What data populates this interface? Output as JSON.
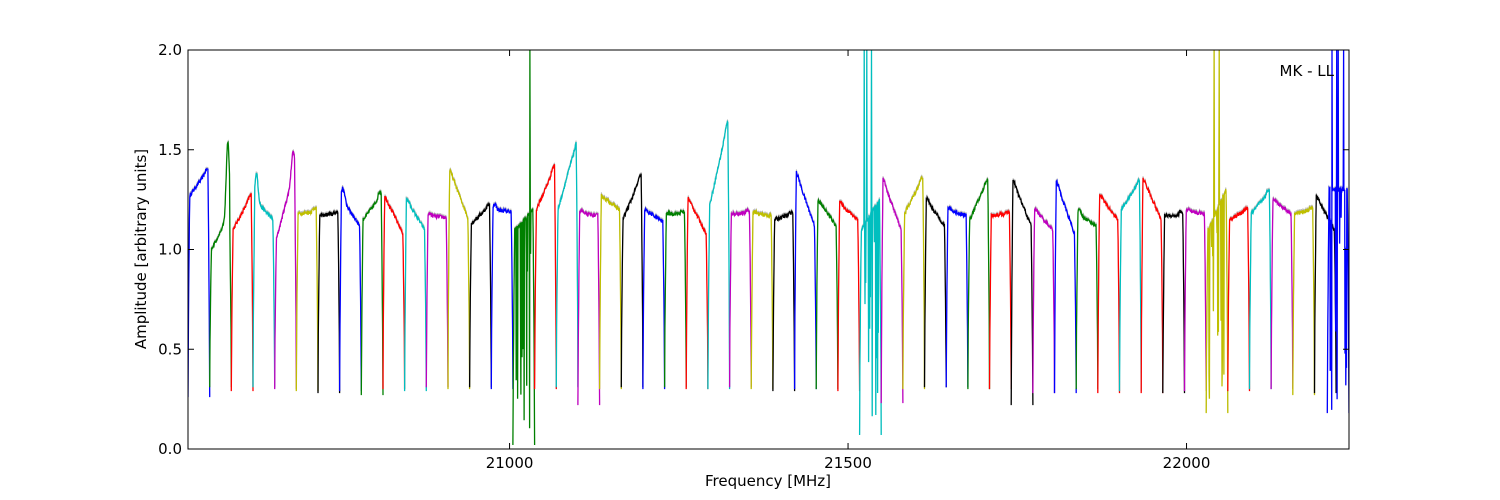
{
  "chart_data": {
    "type": "line",
    "title": "",
    "annotation": "MK - LL",
    "xlabel": "Frequency [MHz]",
    "ylabel": "Amplitude [arbitrary units]",
    "xlim": [
      20525,
      22240
    ],
    "ylim": [
      0.0,
      2.0
    ],
    "xticks": [
      21000,
      21500,
      22000
    ],
    "xtick_labels": [
      "21000",
      "21500",
      "22000"
    ],
    "yticks": [
      0.0,
      0.5,
      1.0,
      1.5,
      2.0
    ],
    "ytick_labels": [
      "0.0",
      "0.5",
      "1.0",
      "1.5",
      "2.0"
    ],
    "grid": false,
    "legend": "none",
    "color_cycle": [
      "#0000ff",
      "#008000",
      "#ff0000",
      "#00bfbf",
      "#bf00bf",
      "#bfbf00",
      "#000000"
    ],
    "band_width_mhz": 32,
    "series": [
      {
        "color": "#0000ff",
        "start": 20525,
        "min": 0.26,
        "left_edge": 1.27,
        "right_edge": 1.4,
        "peak": 1.41,
        "noisy": false
      },
      {
        "color": "#008000",
        "start": 20557,
        "min": 0.31,
        "left_edge": 1.0,
        "right_edge": 1.18,
        "peak": 1.56,
        "noisy": false
      },
      {
        "color": "#ff0000",
        "start": 20589,
        "min": 0.29,
        "left_edge": 1.1,
        "right_edge": 1.27,
        "peak": 1.28,
        "noisy": false
      },
      {
        "color": "#00bfbf",
        "start": 20621,
        "min": 0.31,
        "left_edge": 1.25,
        "right_edge": 1.15,
        "peak": 1.39,
        "noisy": false
      },
      {
        "color": "#bf00bf",
        "start": 20653,
        "min": 0.3,
        "left_edge": 1.05,
        "right_edge": 1.4,
        "peak": 1.52,
        "noisy": false
      },
      {
        "color": "#bfbf00",
        "start": 20685,
        "min": 0.29,
        "left_edge": 1.18,
        "right_edge": 1.19,
        "peak": 1.21,
        "noisy": false
      },
      {
        "color": "#000000",
        "start": 20717,
        "min": 0.28,
        "left_edge": 1.17,
        "right_edge": 1.18,
        "peak": 1.19,
        "noisy": false
      },
      {
        "color": "#0000ff",
        "start": 20749,
        "min": 0.29,
        "left_edge": 1.26,
        "right_edge": 1.12,
        "peak": 1.32,
        "noisy": false
      },
      {
        "color": "#008000",
        "start": 20781,
        "min": 0.27,
        "left_edge": 1.15,
        "right_edge": 1.27,
        "peak": 1.3,
        "noisy": false
      },
      {
        "color": "#ff0000",
        "start": 20813,
        "min": 0.3,
        "left_edge": 1.27,
        "right_edge": 1.08,
        "peak": 1.27,
        "noisy": false
      },
      {
        "color": "#00bfbf",
        "start": 20845,
        "min": 0.29,
        "left_edge": 1.25,
        "right_edge": 1.1,
        "peak": 1.26,
        "noisy": false
      },
      {
        "color": "#bf00bf",
        "start": 20877,
        "min": 0.31,
        "left_edge": 1.17,
        "right_edge": 1.16,
        "peak": 1.18,
        "noisy": false
      },
      {
        "color": "#bfbf00",
        "start": 20909,
        "min": 0.3,
        "left_edge": 1.4,
        "right_edge": 1.16,
        "peak": 1.4,
        "noisy": false
      },
      {
        "color": "#000000",
        "start": 20941,
        "min": 0.31,
        "left_edge": 1.13,
        "right_edge": 1.22,
        "peak": 1.23,
        "noisy": false
      },
      {
        "color": "#0000ff",
        "start": 20973,
        "min": 0.3,
        "left_edge": 1.2,
        "right_edge": 1.19,
        "peak": 1.23,
        "noisy": false
      },
      {
        "color": "#008000",
        "start": 21005,
        "min": 0.02,
        "left_edge": 1.1,
        "right_edge": 1.2,
        "peak": 2.0,
        "noisy": true
      },
      {
        "color": "#ff0000",
        "start": 21037,
        "min": 0.3,
        "left_edge": 1.2,
        "right_edge": 1.41,
        "peak": 1.43,
        "noisy": false
      },
      {
        "color": "#00bfbf",
        "start": 21069,
        "min": 0.31,
        "left_edge": 1.2,
        "right_edge": 1.53,
        "peak": 1.53,
        "noisy": false
      },
      {
        "color": "#bf00bf",
        "start": 21101,
        "min": 0.22,
        "left_edge": 1.18,
        "right_edge": 1.17,
        "peak": 1.2,
        "noisy": false
      },
      {
        "color": "#bfbf00",
        "start": 21133,
        "min": 0.3,
        "left_edge": 1.27,
        "right_edge": 1.2,
        "peak": 1.27,
        "noisy": false
      },
      {
        "color": "#000000",
        "start": 21165,
        "min": 0.31,
        "left_edge": 1.15,
        "right_edge": 1.37,
        "peak": 1.38,
        "noisy": false
      },
      {
        "color": "#0000ff",
        "start": 21197,
        "min": 0.3,
        "left_edge": 1.2,
        "right_edge": 1.14,
        "peak": 1.2,
        "noisy": false
      },
      {
        "color": "#008000",
        "start": 21229,
        "min": 0.31,
        "left_edge": 1.18,
        "right_edge": 1.18,
        "peak": 1.19,
        "noisy": false
      },
      {
        "color": "#ff0000",
        "start": 21261,
        "min": 0.3,
        "left_edge": 1.26,
        "right_edge": 1.08,
        "peak": 1.26,
        "noisy": false
      },
      {
        "color": "#00bfbf",
        "start": 21293,
        "min": 0.3,
        "left_edge": 1.22,
        "right_edge": 1.63,
        "peak": 1.65,
        "noisy": false
      },
      {
        "color": "#bf00bf",
        "start": 21325,
        "min": 0.31,
        "left_edge": 1.18,
        "right_edge": 1.18,
        "peak": 1.2,
        "noisy": false
      },
      {
        "color": "#bfbf00",
        "start": 21357,
        "min": 0.3,
        "left_edge": 1.18,
        "right_edge": 1.17,
        "peak": 1.19,
        "noisy": false
      },
      {
        "color": "#000000",
        "start": 21389,
        "min": 0.29,
        "left_edge": 1.15,
        "right_edge": 1.18,
        "peak": 1.19,
        "noisy": false
      },
      {
        "color": "#0000ff",
        "start": 21421,
        "min": 0.3,
        "left_edge": 1.38,
        "right_edge": 1.12,
        "peak": 1.39,
        "noisy": false
      },
      {
        "color": "#008000",
        "start": 21453,
        "min": 0.3,
        "left_edge": 1.25,
        "right_edge": 1.12,
        "peak": 1.25,
        "noisy": false
      },
      {
        "color": "#ff0000",
        "start": 21485,
        "min": 0.29,
        "left_edge": 1.23,
        "right_edge": 1.15,
        "peak": 1.24,
        "noisy": false
      },
      {
        "color": "#00bfbf",
        "start": 21517,
        "min": 0.07,
        "left_edge": 1.1,
        "right_edge": 1.25,
        "peak": 2.0,
        "noisy": true
      },
      {
        "color": "#bf00bf",
        "start": 21549,
        "min": 0.23,
        "left_edge": 1.35,
        "right_edge": 1.1,
        "peak": 1.36,
        "noisy": false
      },
      {
        "color": "#bfbf00",
        "start": 21581,
        "min": 0.3,
        "left_edge": 1.18,
        "right_edge": 1.36,
        "peak": 1.37,
        "noisy": false
      },
      {
        "color": "#000000",
        "start": 21613,
        "min": 0.31,
        "left_edge": 1.25,
        "right_edge": 1.12,
        "peak": 1.26,
        "noisy": false
      },
      {
        "color": "#0000ff",
        "start": 21645,
        "min": 0.31,
        "left_edge": 1.2,
        "right_edge": 1.17,
        "peak": 1.21,
        "noisy": false
      },
      {
        "color": "#008000",
        "start": 21677,
        "min": 0.3,
        "left_edge": 1.15,
        "right_edge": 1.35,
        "peak": 1.36,
        "noisy": false
      },
      {
        "color": "#ff0000",
        "start": 21709,
        "min": 0.3,
        "left_edge": 1.17,
        "right_edge": 1.18,
        "peak": 1.19,
        "noisy": false
      },
      {
        "color": "#000000",
        "start": 21741,
        "min": 0.22,
        "left_edge": 1.34,
        "right_edge": 1.12,
        "peak": 1.35,
        "noisy": false
      },
      {
        "color": "#bf00bf",
        "start": 21773,
        "min": 0.28,
        "left_edge": 1.2,
        "right_edge": 1.1,
        "peak": 1.21,
        "noisy": false
      },
      {
        "color": "#0000ff",
        "start": 21805,
        "min": 0.28,
        "left_edge": 1.34,
        "right_edge": 1.08,
        "peak": 1.35,
        "noisy": false
      },
      {
        "color": "#008000",
        "start": 21837,
        "min": 0.3,
        "left_edge": 1.18,
        "right_edge": 1.12,
        "peak": 1.2,
        "noisy": false
      },
      {
        "color": "#ff0000",
        "start": 21869,
        "min": 0.28,
        "left_edge": 1.27,
        "right_edge": 1.15,
        "peak": 1.28,
        "noisy": false
      },
      {
        "color": "#00bfbf",
        "start": 21901,
        "min": 0.29,
        "left_edge": 1.2,
        "right_edge": 1.34,
        "peak": 1.35,
        "noisy": false
      },
      {
        "color": "#ff0000",
        "start": 21933,
        "min": 0.28,
        "left_edge": 1.36,
        "right_edge": 1.15,
        "peak": 1.36,
        "noisy": false
      },
      {
        "color": "#000000",
        "start": 21965,
        "min": 0.28,
        "left_edge": 1.17,
        "right_edge": 1.17,
        "peak": 1.19,
        "noisy": false
      },
      {
        "color": "#bf00bf",
        "start": 21997,
        "min": 0.29,
        "left_edge": 1.19,
        "right_edge": 1.18,
        "peak": 1.2,
        "noisy": false
      },
      {
        "color": "#bfbf00",
        "start": 22029,
        "min": 0.18,
        "left_edge": 1.1,
        "right_edge": 1.3,
        "peak": 2.0,
        "noisy": true
      },
      {
        "color": "#ff0000",
        "start": 22061,
        "min": 0.29,
        "left_edge": 1.15,
        "right_edge": 1.2,
        "peak": 1.21,
        "noisy": false
      },
      {
        "color": "#00bfbf",
        "start": 22093,
        "min": 0.3,
        "left_edge": 1.18,
        "right_edge": 1.29,
        "peak": 1.3,
        "noisy": false
      },
      {
        "color": "#bf00bf",
        "start": 22125,
        "min": 0.3,
        "left_edge": 1.25,
        "right_edge": 1.18,
        "peak": 1.26,
        "noisy": false
      },
      {
        "color": "#bfbf00",
        "start": 22157,
        "min": 0.27,
        "left_edge": 1.18,
        "right_edge": 1.2,
        "peak": 1.21,
        "noisy": false
      },
      {
        "color": "#000000",
        "start": 22189,
        "min": 0.28,
        "left_edge": 1.27,
        "right_edge": 1.1,
        "peak": 1.27,
        "noisy": false
      },
      {
        "color": "#0000ff",
        "start": 22208,
        "min": 0.18,
        "left_edge": 1.3,
        "right_edge": 1.3,
        "peak": 2.0,
        "noisy": true
      }
    ]
  }
}
